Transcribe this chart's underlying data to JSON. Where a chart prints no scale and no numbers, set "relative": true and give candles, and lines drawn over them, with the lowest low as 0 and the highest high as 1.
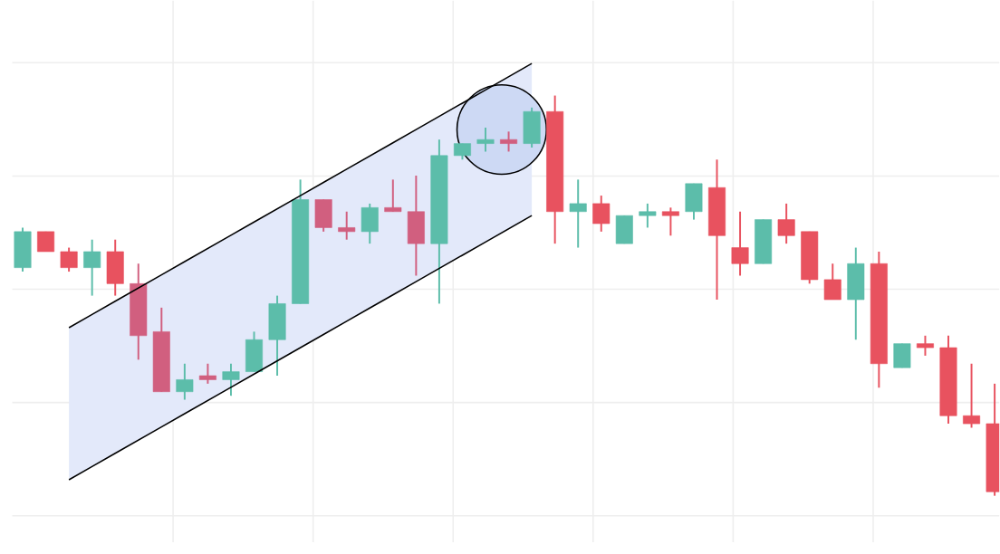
{
  "chart_data": {
    "type": "candlestick",
    "relative": true,
    "grid": true,
    "tick_labels": false,
    "series": [
      {
        "type": "line",
        "values": [
          null,
          null,
          0.42,
          0.453,
          0.486,
          0.519,
          0.552,
          0.585,
          0.618,
          0.651,
          0.684,
          0.717,
          0.75,
          0.783,
          0.816,
          0.849,
          0.882,
          0.915,
          0.948,
          0.981,
          1.014,
          1.047,
          1.08,
          null,
          null,
          null,
          null,
          null,
          null,
          null,
          null,
          null,
          null,
          null,
          null,
          null,
          null,
          null,
          null,
          null,
          null,
          null,
          null
        ],
        "color": "#000000"
      },
      {
        "type": "line",
        "values": [
          null,
          null,
          0.04,
          0.073,
          0.106,
          0.139,
          0.172,
          0.205,
          0.238,
          0.271,
          0.304,
          0.337,
          0.37,
          0.403,
          0.436,
          0.469,
          0.502,
          0.535,
          0.568,
          0.601,
          0.634,
          0.667,
          0.7,
          null,
          null,
          null,
          null,
          null,
          null,
          null,
          null,
          null,
          null,
          null,
          null,
          null,
          null,
          null,
          null,
          null,
          null,
          null,
          null
        ],
        "color": "#000000"
      }
    ],
    "categories": [
      null,
      null,
      null,
      null,
      null,
      null,
      null,
      null,
      null,
      null,
      null,
      null,
      null,
      null,
      null,
      null,
      null,
      null,
      null,
      null,
      null,
      null,
      null,
      null,
      null,
      null,
      null,
      null,
      null,
      null,
      null,
      null,
      null,
      null,
      null,
      null,
      null,
      null,
      null,
      null,
      null,
      null,
      null
    ],
    "ohlc": [
      [
        0.57,
        0.67,
        0.56,
        0.66
      ],
      [
        0.66,
        0.66,
        0.61,
        0.61
      ],
      [
        0.61,
        0.62,
        0.56,
        0.57
      ],
      [
        0.57,
        0.64,
        0.5,
        0.61
      ],
      [
        0.61,
        0.64,
        0.5,
        0.53
      ],
      [
        0.53,
        0.58,
        0.34,
        0.4
      ],
      [
        0.41,
        0.47,
        0.26,
        0.26
      ],
      [
        0.26,
        0.33,
        0.24,
        0.29
      ],
      [
        0.3,
        0.33,
        0.28,
        0.29
      ],
      [
        0.29,
        0.33,
        0.25,
        0.31
      ],
      [
        0.31,
        0.41,
        0.31,
        0.39
      ],
      [
        0.39,
        0.5,
        0.3,
        0.48
      ],
      [
        0.48,
        0.79,
        0.48,
        0.74
      ],
      [
        0.74,
        0.74,
        0.66,
        0.67
      ],
      [
        0.67,
        0.71,
        0.64,
        0.66
      ],
      [
        0.66,
        0.73,
        0.63,
        0.72
      ],
      [
        0.72,
        0.79,
        0.71,
        0.71
      ],
      [
        0.71,
        0.8,
        0.55,
        0.63
      ],
      [
        0.63,
        0.89,
        0.48,
        0.85
      ],
      [
        0.85,
        0.88,
        0.84,
        0.88
      ],
      [
        0.88,
        0.92,
        0.86,
        0.89
      ],
      [
        0.89,
        0.91,
        0.86,
        0.88
      ],
      [
        0.88,
        0.97,
        0.87,
        0.96
      ],
      [
        0.96,
        1.0,
        0.63,
        0.71
      ],
      [
        0.71,
        0.79,
        0.62,
        0.73
      ],
      [
        0.73,
        0.75,
        0.66,
        0.68
      ],
      [
        0.63,
        0.7,
        0.63,
        0.7
      ],
      [
        0.7,
        0.73,
        0.67,
        0.71
      ],
      [
        0.71,
        0.72,
        0.65,
        0.7
      ],
      [
        0.71,
        0.78,
        0.69,
        0.78
      ],
      [
        0.77,
        0.84,
        0.49,
        0.65
      ],
      [
        0.62,
        0.71,
        0.55,
        0.58
      ],
      [
        0.58,
        0.69,
        0.58,
        0.69
      ],
      [
        0.69,
        0.73,
        0.63,
        0.65
      ],
      [
        0.66,
        0.66,
        0.53,
        0.54
      ],
      [
        0.54,
        0.58,
        0.49,
        0.49
      ],
      [
        0.49,
        0.62,
        0.39,
        0.58
      ],
      [
        0.58,
        0.61,
        0.27,
        0.33
      ],
      [
        0.32,
        0.38,
        0.32,
        0.38
      ],
      [
        0.38,
        0.4,
        0.35,
        0.37
      ],
      [
        0.37,
        0.4,
        0.18,
        0.2
      ],
      [
        0.2,
        0.33,
        0.17,
        0.18
      ],
      [
        0.18,
        0.28,
        0.0,
        0.01
      ]
    ],
    "colors": [
      "#5cbdaa",
      "#e8525f",
      "#e8525f",
      "#5cbdaa",
      "#e8525f",
      "#d15f7f",
      "#d15f7f",
      "#5cbdaa",
      "#d15f7f",
      "#5cbdaa",
      "#5cbdaa",
      "#5cbdaa",
      "#5cbdaa",
      "#d15f7f",
      "#d15f7f",
      "#5cbdaa",
      "#d15f7f",
      "#d15f7f",
      "#5cbdaa",
      "#5cbdaa",
      "#5cbdaa",
      "#d15f7f",
      "#5cbdaa",
      "#e8525f",
      "#5cbdaa",
      "#e8525f",
      "#5cbdaa",
      "#5cbdaa",
      "#e8525f",
      "#5cbdaa",
      "#e8525f",
      "#e8525f",
      "#5cbdaa",
      "#e8525f",
      "#e8525f",
      "#e8525f",
      "#5cbdaa",
      "#e8525f",
      "#5cbdaa",
      "#e8525f",
      "#e8525f",
      "#e8525f",
      "#e8525f"
    ]
  }
}
